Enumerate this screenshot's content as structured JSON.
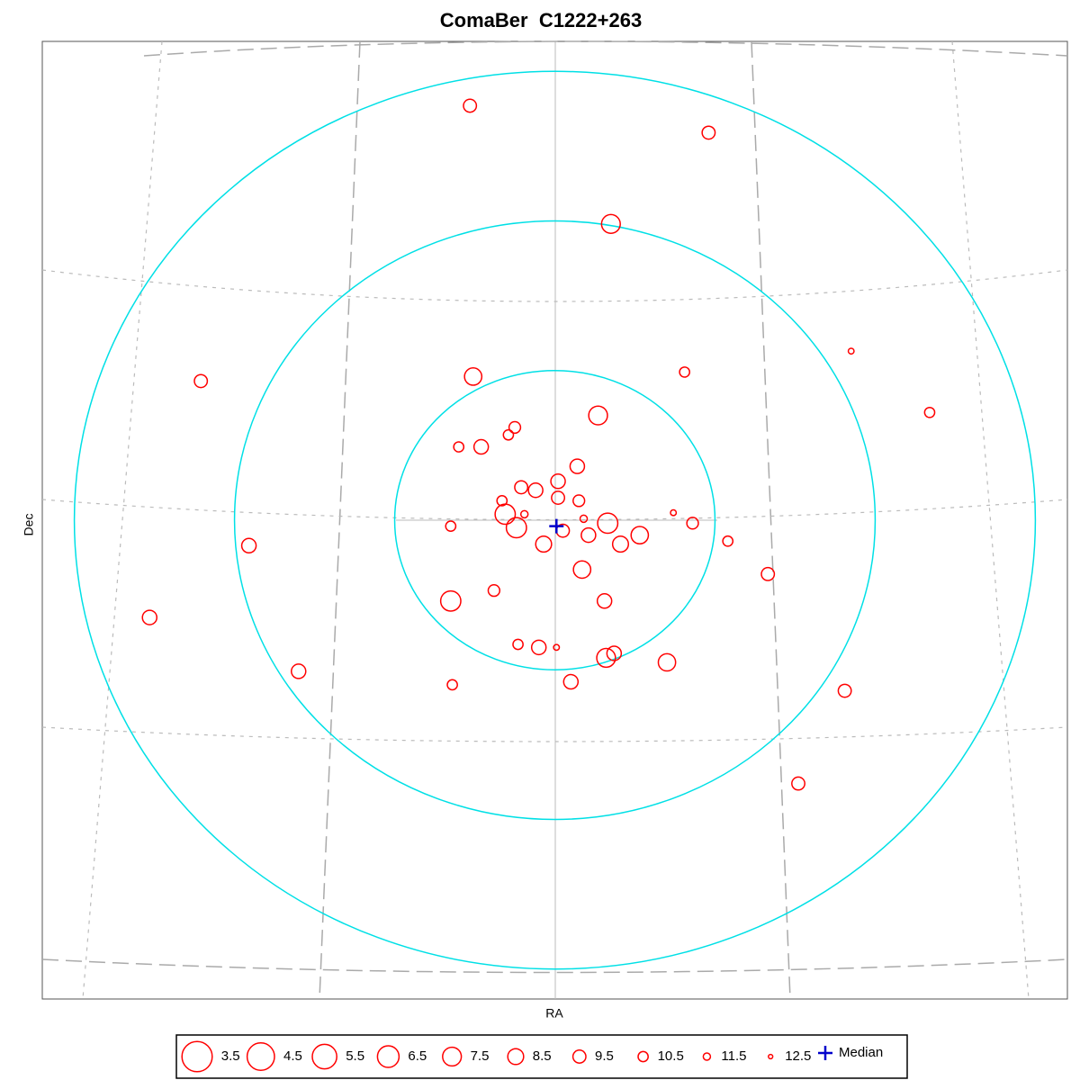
{
  "chart_data": {
    "type": "scatter",
    "title": "ComaBer  C1222+263",
    "xlabel": "RA",
    "ylabel": "Dec",
    "xlim": [
      -3.2,
      3.2
    ],
    "ylim": [
      -3.2,
      3.2
    ],
    "color": "#ff0000",
    "x": [
      -0.53,
      0.96,
      0.35,
      -2.21,
      -0.51,
      0.81,
      1.85,
      0.27,
      2.34,
      -0.25,
      -0.29,
      -0.6,
      -0.46,
      0.14,
      0.02,
      -0.21,
      -0.12,
      -0.33,
      0.02,
      0.15,
      -0.19,
      -0.31,
      0.18,
      0.33,
      0.74,
      0.86,
      -0.65,
      -0.24,
      0.05,
      0.21,
      -0.07,
      0.41,
      0.53,
      1.08,
      -1.91,
      0.17,
      1.33,
      -0.38,
      -0.65,
      0.31,
      -2.53,
      -0.23,
      -0.1,
      0.01,
      0.37,
      0.32,
      0.7,
      -1.6,
      -0.64,
      0.1,
      1.81,
      1.52
    ],
    "y": [
      2.77,
      2.59,
      1.98,
      0.93,
      0.96,
      0.99,
      1.13,
      0.7,
      0.72,
      0.62,
      0.57,
      0.49,
      0.49,
      0.36,
      0.26,
      0.22,
      0.2,
      0.13,
      0.15,
      0.13,
      0.04,
      0.04,
      0.01,
      -0.02,
      0.05,
      -0.02,
      -0.04,
      -0.05,
      -0.07,
      -0.1,
      -0.16,
      -0.16,
      -0.1,
      -0.14,
      -0.17,
      -0.33,
      -0.36,
      -0.47,
      -0.54,
      -0.54,
      -0.65,
      -0.83,
      -0.85,
      -0.85,
      -0.89,
      -0.92,
      -0.95,
      -1.01,
      -1.1,
      -1.08,
      -1.14,
      -1.76
    ],
    "sizes": [
      9.5,
      9.5,
      7.5,
      9.5,
      8,
      10.5,
      12,
      7.5,
      10.5,
      10,
      10.5,
      10.5,
      9,
      9,
      9,
      9.5,
      9,
      10.5,
      9.5,
      10,
      11.5,
      7,
      11.5,
      7,
      12,
      10,
      10.5,
      7,
      9.5,
      9,
      8.5,
      8.5,
      8,
      10.5,
      9,
      8,
      9.5,
      10,
      7,
      9,
      9,
      10.5,
      9,
      12,
      9,
      7.5,
      8,
      9,
      10.5,
      9,
      9.5,
      9.5
    ],
    "size_legend": [
      3.5,
      4.5,
      5.5,
      6.5,
      7.5,
      8.5,
      9.5,
      10.5,
      11.5,
      12.5
    ],
    "median": {
      "name": "Median",
      "x": 0.01,
      "y": -0.04,
      "color": "#0000cc"
    },
    "rings": [
      1,
      2,
      3
    ],
    "ring_color": "#00e0e6"
  }
}
